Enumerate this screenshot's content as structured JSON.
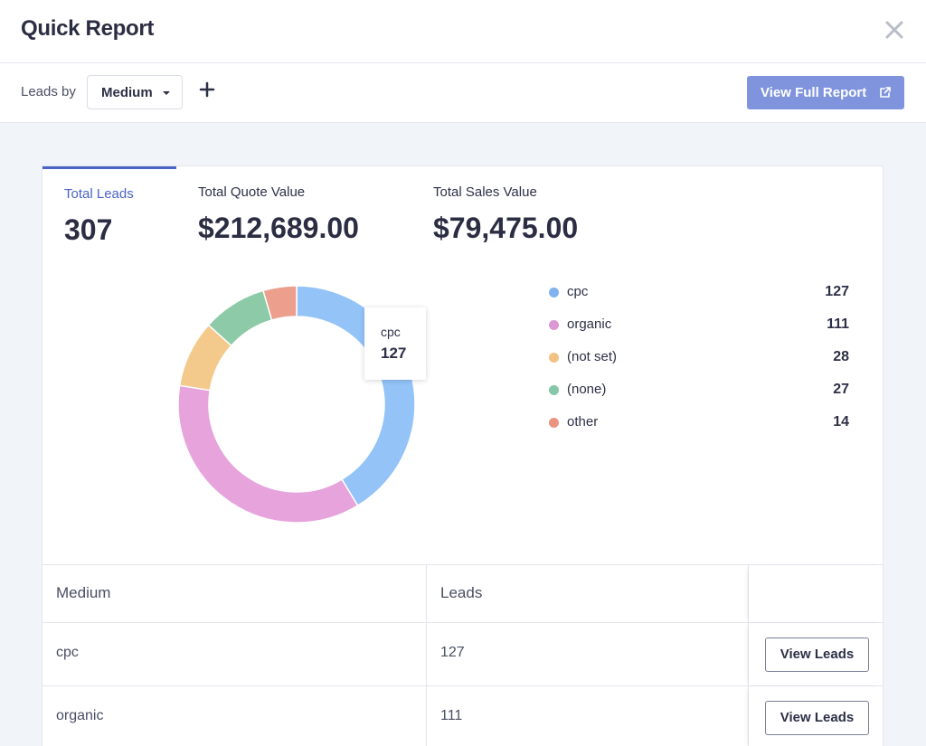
{
  "header": {
    "title": "Quick Report"
  },
  "toolbar": {
    "leads_by_label": "Leads by",
    "dimension_selected": "Medium",
    "view_full_report_label": "View Full Report"
  },
  "summary_tabs": [
    {
      "label": "Total Leads",
      "value": "307",
      "active": true
    },
    {
      "label": "Total Quote Value",
      "value": "$212,689.00",
      "active": false
    },
    {
      "label": "Total Sales Value",
      "value": "$79,475.00",
      "active": false
    }
  ],
  "chart_data": {
    "type": "pie",
    "categories": [
      "cpc",
      "organic",
      "(not set)",
      "(none)",
      "other"
    ],
    "values": [
      127,
      111,
      28,
      27,
      14
    ],
    "colors": [
      "#93c3f7",
      "#e7a3dc",
      "#f4c98c",
      "#8ccaa8",
      "#ec9f8c"
    ],
    "legend_colors": [
      "#7fb2ef",
      "#dc97d5",
      "#f2c283",
      "#85c7a6",
      "#ea9480"
    ],
    "donut": true,
    "legend_position": "right"
  },
  "tooltip": {
    "label": "cpc",
    "value": "127"
  },
  "table": {
    "headers": [
      "Medium",
      "Leads",
      ""
    ],
    "rows": [
      {
        "medium": "cpc",
        "leads": "127",
        "action": "View Leads"
      },
      {
        "medium": "organic",
        "leads": "111",
        "action": "View Leads"
      }
    ]
  },
  "colors": {
    "accent": "#4a63c5",
    "primary_button": "#7f94dd",
    "background": "#f1f4f9"
  }
}
